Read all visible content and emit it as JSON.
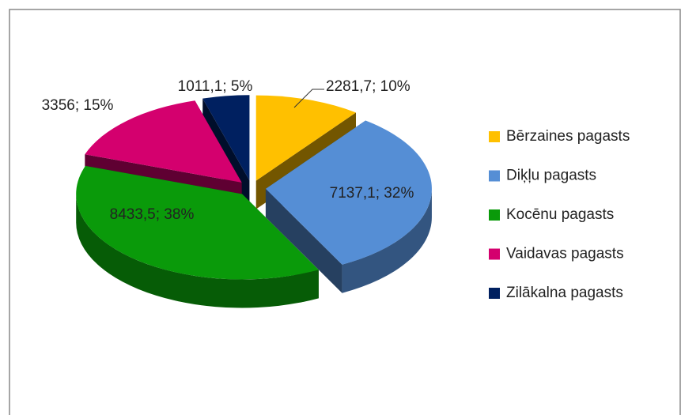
{
  "chart_data": {
    "type": "pie",
    "categories": [
      "Bērzaines pagasts",
      "Diķļu pagasts",
      "Kocēnu pagasts",
      "Vaidavas pagasts",
      "Zilākalna pagasts"
    ],
    "values": [
      2281.7,
      7137.1,
      8433.5,
      3356,
      1011.1
    ],
    "value_labels": [
      "2281,7; 10%",
      "7137,1; 32%",
      "8433,5; 38%",
      "3356; 15%",
      "1011,1; 5%"
    ],
    "colors": [
      "#ffc000",
      "#558ed5",
      "#0a9a0a",
      "#d4006e",
      "#002060"
    ],
    "legend": "right"
  }
}
